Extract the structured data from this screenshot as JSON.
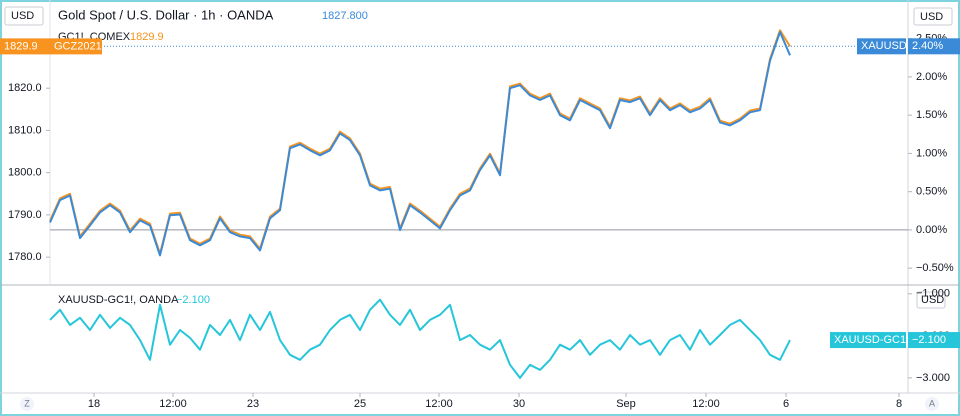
{
  "currency": "USD",
  "buttons": [
    "Z",
    "A"
  ],
  "chart_data": [
    {
      "type": "line",
      "title": "Gold Spot / U.S. Dollar · 1h · OANDA",
      "ylim": [
        1773.4,
        1839.7
      ],
      "yticks": [
        {
          "value": 1780,
          "label": "1780.0"
        },
        {
          "value": 1790,
          "label": "1790.0"
        },
        {
          "value": 1800,
          "label": "1800.0"
        },
        {
          "value": 1810,
          "label": "1810.0"
        },
        {
          "value": 1820,
          "label": "1820.0"
        }
      ],
      "y2lim": [
        -0.72,
        2.94
      ],
      "y2ticks": [
        {
          "value": -0.5,
          "label": "−0.50%"
        },
        {
          "value": 0,
          "label": "0.00%"
        },
        {
          "value": 0.5,
          "label": "0.50%"
        },
        {
          "value": 1,
          "label": "1.00%"
        },
        {
          "value": 1.5,
          "label": "1.50%"
        },
        {
          "value": 2,
          "label": "2.00%"
        },
        {
          "value": 2.5,
          "label": "2.50%"
        }
      ],
      "y2_tag": {
        "value": 2.4,
        "label": "2.40%"
      },
      "series": [
        {
          "name": "GC1!, COMEX",
          "color": "#f7931e",
          "last_label": "1829.9",
          "axis_tag": "GCZ2021",
          "values": [
            1788.6,
            1793.9,
            1795.0,
            1784.9,
            1787.9,
            1791.0,
            1792.7,
            1791.0,
            1786.3,
            1789.1,
            1787.9,
            1780.8,
            1790.3,
            1790.5,
            1784.4,
            1783.2,
            1784.4,
            1789.6,
            1786.3,
            1785.3,
            1784.9,
            1782.0,
            1789.6,
            1791.5,
            1806.2,
            1807.1,
            1805.7,
            1804.5,
            1805.7,
            1809.7,
            1808.1,
            1804.5,
            1797.4,
            1796.2,
            1796.6,
            1786.8,
            1792.7,
            1791.0,
            1789.1,
            1787.2,
            1791.5,
            1795.0,
            1796.2,
            1801.0,
            1804.5,
            1799.8,
            1820.4,
            1821.1,
            1818.7,
            1817.6,
            1818.7,
            1814.0,
            1812.8,
            1817.6,
            1816.4,
            1815.2,
            1810.9,
            1817.6,
            1817.1,
            1818.0,
            1814.0,
            1817.6,
            1815.2,
            1816.4,
            1814.7,
            1815.6,
            1817.6,
            1812.3,
            1811.6,
            1812.8,
            1814.7,
            1815.2,
            1826.9,
            1833.7,
            1829.9
          ]
        },
        {
          "name": "XAUUSD",
          "color": "#3a8ad8",
          "last_label": "1827.800",
          "axis_tag": "XAUUSD",
          "values": [
            1788.2,
            1793.5,
            1794.6,
            1784.5,
            1787.5,
            1790.6,
            1792.3,
            1790.6,
            1785.9,
            1788.7,
            1787.5,
            1780.4,
            1789.9,
            1790.1,
            1784.0,
            1782.8,
            1784.0,
            1789.2,
            1785.9,
            1784.9,
            1784.5,
            1781.6,
            1789.2,
            1791.1,
            1805.8,
            1806.7,
            1805.3,
            1804.1,
            1805.3,
            1809.3,
            1807.7,
            1804.1,
            1797.0,
            1795.8,
            1796.2,
            1786.4,
            1792.3,
            1790.6,
            1788.7,
            1786.8,
            1791.1,
            1794.6,
            1795.8,
            1800.6,
            1804.1,
            1799.4,
            1820.0,
            1820.7,
            1818.3,
            1817.2,
            1818.3,
            1813.6,
            1812.4,
            1817.2,
            1816.0,
            1814.8,
            1810.5,
            1817.2,
            1816.7,
            1817.6,
            1813.6,
            1817.2,
            1814.8,
            1816.0,
            1814.3,
            1815.2,
            1817.2,
            1811.9,
            1811.2,
            1812.4,
            1814.3,
            1814.8,
            1826.5,
            1833.3,
            1827.8
          ]
        }
      ]
    },
    {
      "type": "line",
      "x": [
        0,
        1,
        2,
        3,
        4,
        5,
        6,
        7,
        8,
        9,
        10,
        11,
        12,
        13,
        14,
        15,
        16,
        17,
        18,
        19,
        20,
        21,
        22,
        23,
        24,
        25,
        26,
        27,
        28,
        29,
        30,
        31,
        32,
        33,
        34,
        35,
        36,
        37,
        38,
        39,
        40,
        41,
        42,
        43,
        44,
        45,
        46,
        47,
        48,
        49,
        50,
        51,
        52,
        53,
        54,
        55,
        56,
        57,
        58,
        59,
        60,
        61,
        62,
        63,
        64,
        65,
        66,
        67,
        68,
        69,
        70,
        71,
        72,
        73,
        74
      ],
      "xlim": [
        0,
        85.8
      ],
      "xticks": [
        {
          "value": 4.4,
          "label": "18"
        },
        {
          "value": 12.3,
          "label": "12:00"
        },
        {
          "value": 20.3,
          "label": "23"
        },
        {
          "value": 31,
          "label": "25"
        },
        {
          "value": 38.9,
          "label": "12:00"
        },
        {
          "value": 46.9,
          "label": "30"
        },
        {
          "value": 57.6,
          "label": "Sep"
        },
        {
          "value": 65.6,
          "label": "12:00"
        },
        {
          "value": 73.6,
          "label": "6"
        },
        {
          "value": 84.9,
          "label": "8"
        }
      ],
      "y2lim": [
        -3.36,
        -0.79
      ],
      "y2ticks": [
        {
          "value": -3,
          "label": "−3.000"
        },
        {
          "value": -2,
          "label": "−2.000"
        },
        {
          "value": -1,
          "label": "−1.000"
        }
      ],
      "series": [
        {
          "name": "XAUUSD-GC1!, OANDA",
          "color": "#26c6da",
          "axis": "y2",
          "last_label": "−2.100",
          "axis_tag": "XAUUSD-GC1!",
          "values": [
            -1.62,
            -1.38,
            -1.74,
            -1.57,
            -1.86,
            -1.5,
            -1.81,
            -1.57,
            -1.74,
            -2.1,
            -2.57,
            -1.26,
            -2.21,
            -1.86,
            -2.05,
            -2.33,
            -1.74,
            -1.98,
            -1.62,
            -2.1,
            -1.5,
            -1.86,
            -1.43,
            -2.1,
            -2.45,
            -2.57,
            -2.33,
            -2.21,
            -1.86,
            -1.62,
            -1.5,
            -1.86,
            -1.38,
            -1.14,
            -1.5,
            -1.74,
            -1.38,
            -1.86,
            -1.62,
            -1.5,
            -1.26,
            -2.1,
            -1.98,
            -2.21,
            -2.33,
            -2.1,
            -2.69,
            -3.0,
            -2.69,
            -2.81,
            -2.57,
            -2.21,
            -2.33,
            -2.1,
            -2.45,
            -2.21,
            -2.1,
            -2.33,
            -1.98,
            -2.21,
            -2.1,
            -2.45,
            -2.1,
            -1.98,
            -2.33,
            -1.86,
            -2.21,
            -1.98,
            -1.74,
            -1.62,
            -1.86,
            -2.1,
            -2.45,
            -2.57,
            -2.1
          ]
        }
      ]
    }
  ]
}
